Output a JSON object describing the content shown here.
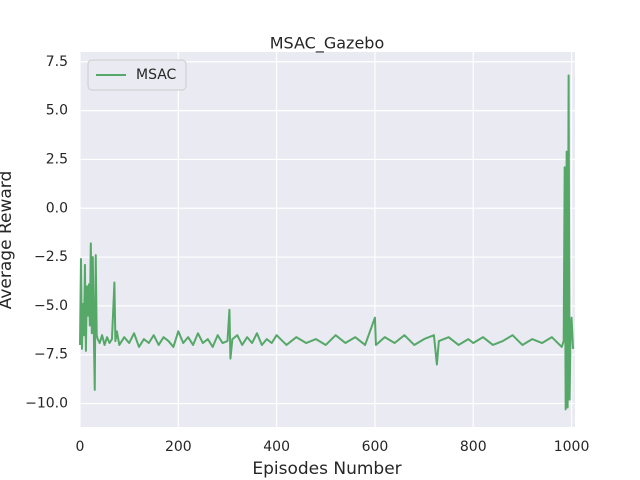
{
  "chart_data": {
    "type": "line",
    "title": "MSAC_Gazebo",
    "x_label": "Episodes Number",
    "y_label": "Average Reward",
    "x": [
      0,
      2,
      4,
      6,
      8,
      10,
      12,
      14,
      16,
      18,
      20,
      22,
      24,
      26,
      28,
      30,
      32,
      34,
      36,
      40,
      45,
      50,
      55,
      60,
      65,
      70,
      72,
      75,
      80,
      90,
      100,
      110,
      120,
      130,
      140,
      150,
      160,
      170,
      180,
      190,
      200,
      210,
      220,
      230,
      240,
      250,
      260,
      270,
      280,
      290,
      300,
      304,
      306,
      310,
      320,
      330,
      340,
      350,
      360,
      370,
      380,
      390,
      400,
      420,
      440,
      460,
      480,
      500,
      520,
      540,
      560,
      580,
      600,
      602,
      620,
      640,
      660,
      680,
      700,
      720,
      726,
      730,
      750,
      770,
      790,
      800,
      820,
      840,
      860,
      880,
      900,
      920,
      940,
      960,
      980,
      984,
      986,
      988,
      990,
      992,
      994,
      996,
      998,
      1000,
      1003
    ],
    "series": [
      {
        "name": "MSAC",
        "color": "#55a868",
        "values": [
          -7.0,
          -2.6,
          -7.2,
          -4.9,
          -6.5,
          -2.9,
          -7.3,
          -4.0,
          -5.5,
          -3.9,
          -6.0,
          -1.8,
          -6.4,
          -2.5,
          -6.2,
          -9.3,
          -2.4,
          -6.5,
          -6.7,
          -6.9,
          -6.5,
          -7.0,
          -6.6,
          -6.9,
          -6.7,
          -3.8,
          -6.8,
          -6.3,
          -7.0,
          -6.6,
          -6.9,
          -6.4,
          -7.1,
          -6.7,
          -6.9,
          -6.5,
          -7.0,
          -6.6,
          -6.8,
          -7.1,
          -6.3,
          -6.9,
          -6.6,
          -7.0,
          -6.4,
          -6.9,
          -6.7,
          -7.1,
          -6.5,
          -6.9,
          -6.8,
          -5.2,
          -7.7,
          -6.7,
          -6.5,
          -7.0,
          -6.6,
          -6.9,
          -6.4,
          -7.0,
          -6.7,
          -6.9,
          -6.5,
          -7.0,
          -6.6,
          -6.9,
          -6.7,
          -7.0,
          -6.5,
          -6.9,
          -6.6,
          -7.0,
          -5.6,
          -7.0,
          -6.6,
          -6.9,
          -6.5,
          -7.0,
          -6.7,
          -6.5,
          -8.0,
          -6.8,
          -6.6,
          -7.0,
          -6.7,
          -6.9,
          -6.6,
          -7.0,
          -6.8,
          -6.5,
          -7.0,
          -6.7,
          -6.9,
          -6.6,
          -7.1,
          -6.8,
          2.1,
          -10.3,
          2.9,
          -10.2,
          6.8,
          -9.8,
          -6.5,
          -5.6,
          -7.2
        ]
      }
    ],
    "xlim": [
      0,
      1007
    ],
    "ylim": [
      -11.2,
      8.0
    ],
    "xticks": [
      0,
      200,
      400,
      600,
      800,
      1000
    ],
    "yticks": [
      7.5,
      {
        "value": 5,
        "label": "5.0"
      },
      {
        "value": 2.5,
        "label": "2.5"
      },
      {
        "value": 0,
        "label": "0.0"
      },
      {
        "value": -2.5,
        "label": "−2.5"
      },
      {
        "value": -5,
        "label": "−5.0"
      },
      {
        "value": -7.5,
        "label": "−7.5"
      },
      {
        "value": -10,
        "label": "−10.0"
      }
    ],
    "grid": true,
    "legend": "upper-left"
  }
}
